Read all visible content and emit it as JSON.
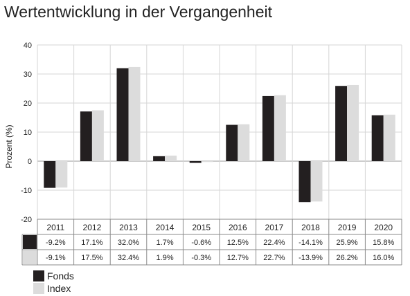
{
  "colors": {
    "fonds": "#231f20",
    "index": "#dcdcdc",
    "grid": "#d6d6d6"
  },
  "chart_data": {
    "type": "bar",
    "title": "Wertentwicklung in der Vergangenheit",
    "ylabel": "Prozent (%)",
    "xlabel": "",
    "ylim": [
      -20,
      40
    ],
    "yticks": [
      40,
      30,
      20,
      10,
      0,
      -10,
      -20
    ],
    "grid": true,
    "legend_position": "bottom-left",
    "categories": [
      "2011",
      "2012",
      "2013",
      "2014",
      "2015",
      "2016",
      "2017",
      "2018",
      "2019",
      "2020"
    ],
    "series": [
      {
        "name": "Fonds",
        "values": [
          -9.2,
          17.1,
          32.0,
          1.7,
          -0.6,
          12.5,
          22.4,
          -14.1,
          25.9,
          15.8
        ],
        "labels": [
          "-9.2%",
          "17.1%",
          "32.0%",
          "1.7%",
          "-0.6%",
          "12.5%",
          "22.4%",
          "-14.1%",
          "25.9%",
          "15.8%"
        ]
      },
      {
        "name": "Index",
        "values": [
          -9.1,
          17.5,
          32.4,
          1.9,
          -0.3,
          12.7,
          22.7,
          -13.9,
          26.2,
          16.0
        ],
        "labels": [
          "-9.1%",
          "17.5%",
          "32.4%",
          "1.9%",
          "-0.3%",
          "12.7%",
          "22.7%",
          "-13.9%",
          "26.2%",
          "16.0%"
        ]
      }
    ]
  }
}
